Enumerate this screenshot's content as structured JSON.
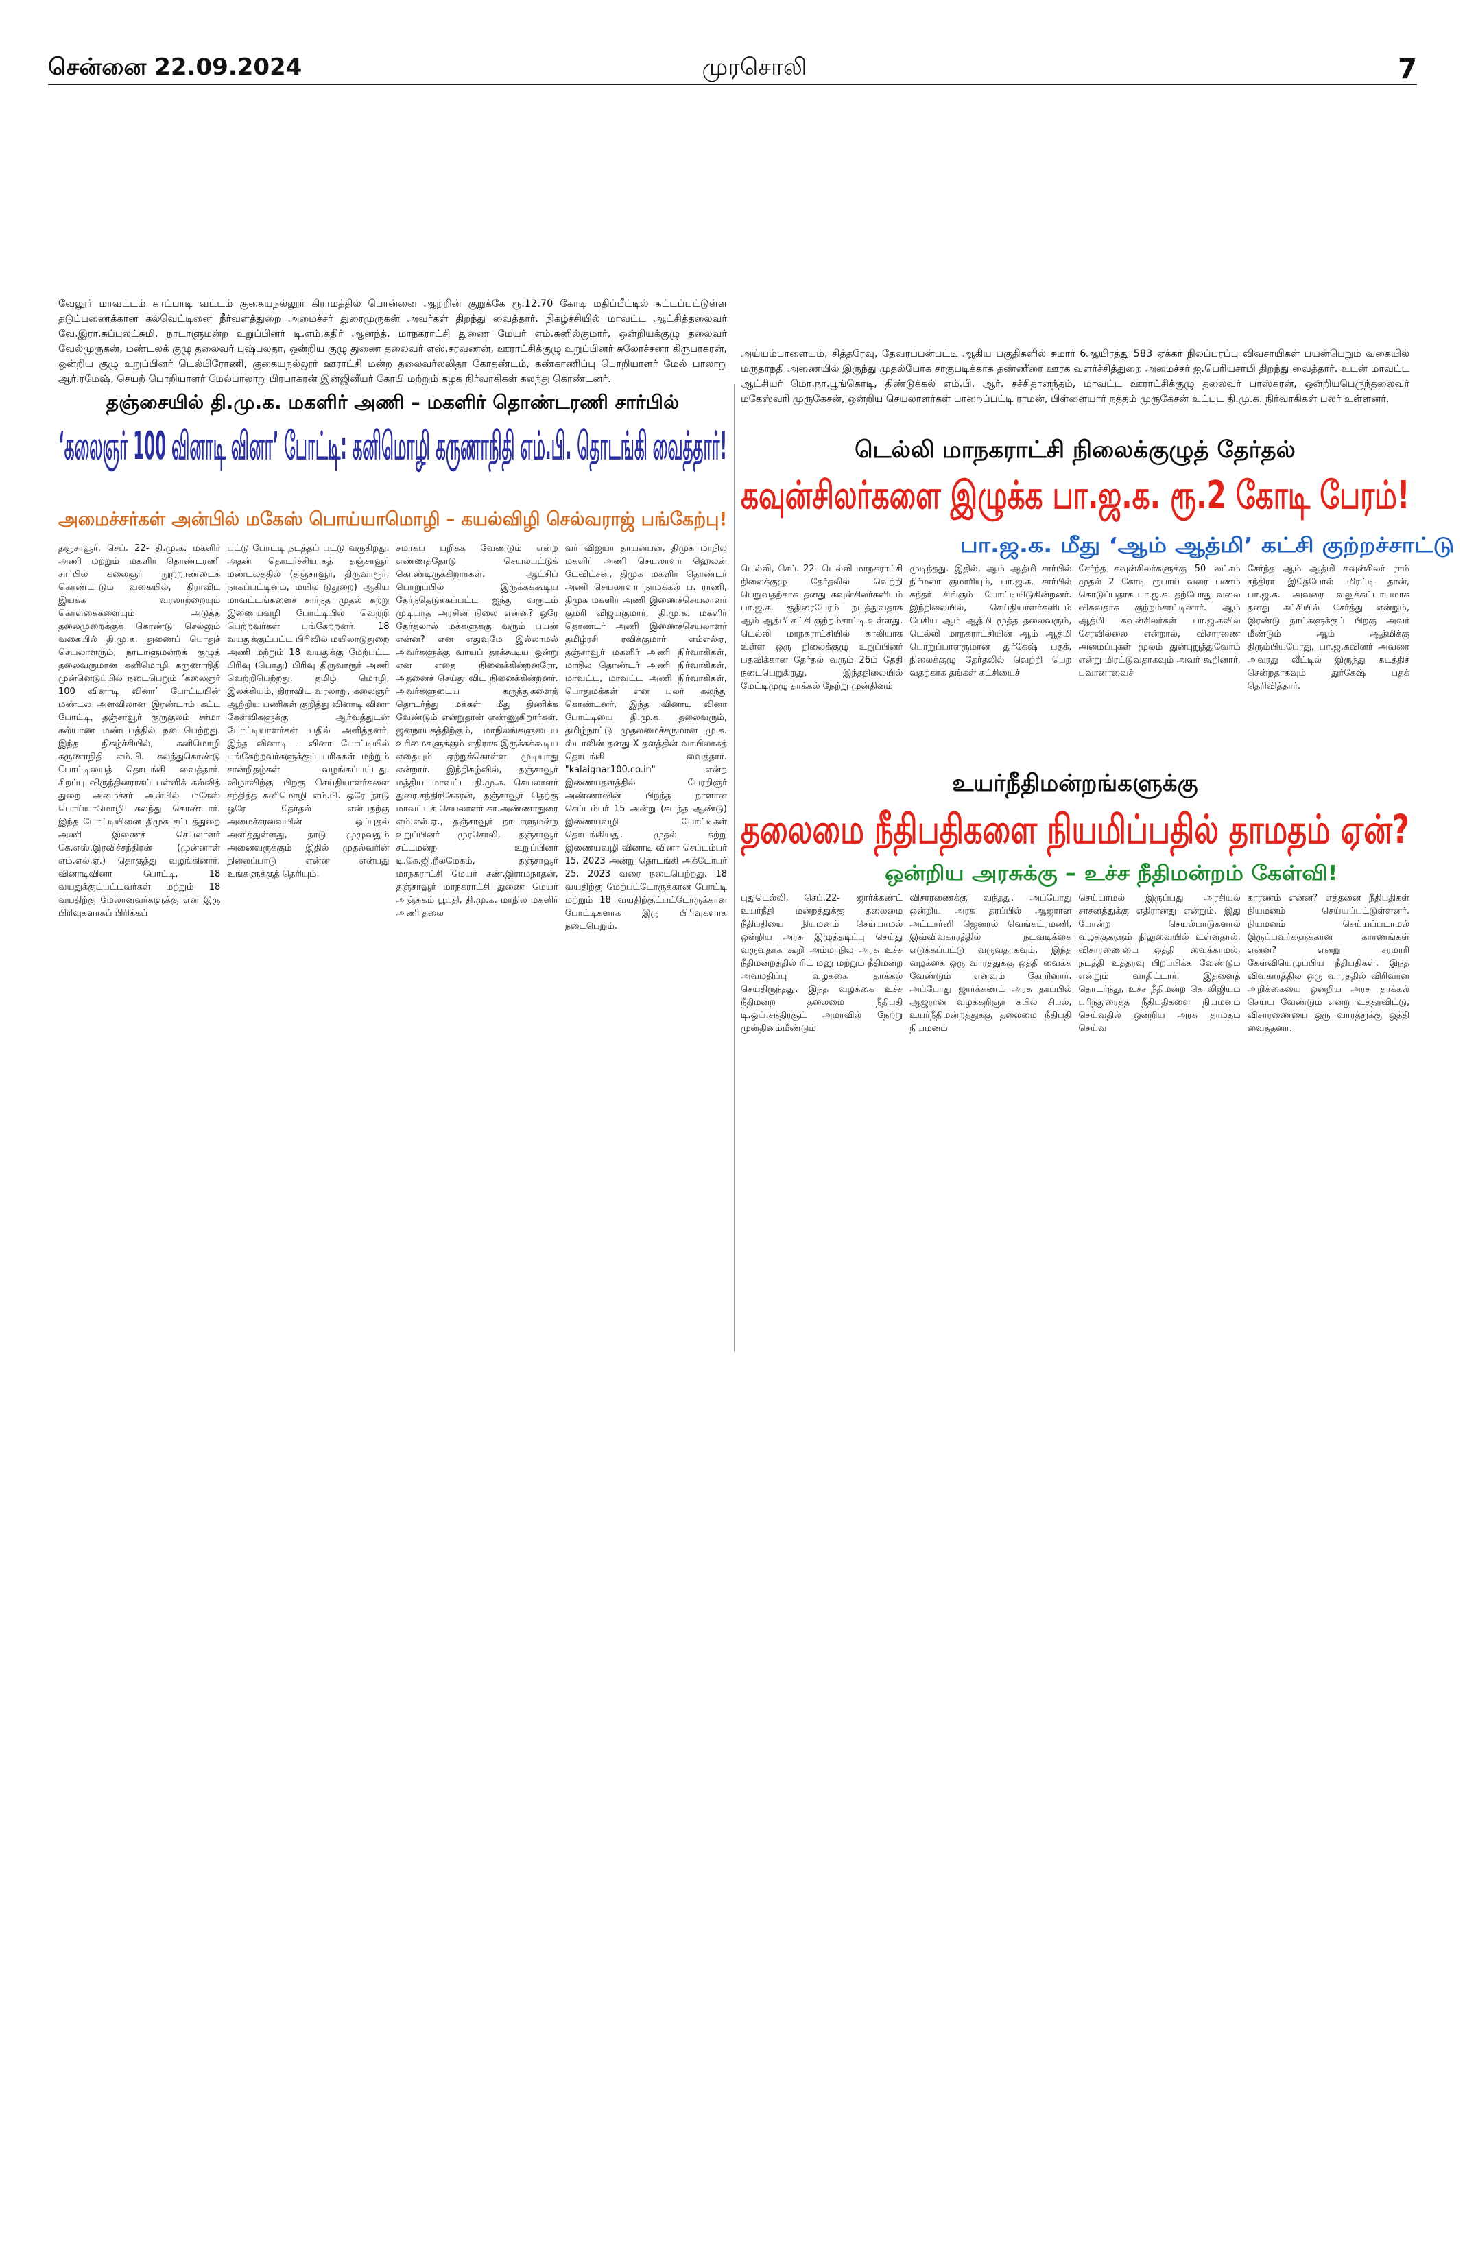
{
  "header": {
    "place_date": "சென்னை 22.09.2024",
    "paper": "முரசொலி",
    "page": "7"
  },
  "photo_captions": [
    "வேலூர் மாவட்டம் காட்பாடி வட்டம் குகையநல்லூர் கிராமத்தில் பொன்னை ஆற்றின் குறுக்கே ரூ.12.70 கோடி மதிப்பீட்டில் கட்டப்பட்டுள்ள தடுப்பணைக்கான கல்வெட்டினை நீர்வளத்துறை அமைச்சர் துரைமுருகன் அவர்கள் திறந்து வைத்தார். நிகழ்ச்சியில் மாவட்ட ஆட்சித்தலைவர் வே.இரா.சுப்புலட்சுமி, நாடாளுமன்ற உறுப்பினர் டி.எம்.கதிர் ஆனந்த், மாநகராட்சி துணை மேயர் எம்.சுனில்குமார், ஒன்றியக்குழு தலைவர் வேல்முருகன், மண்டலக் குழு தலைவர் புஷ்பலதா, ஒன்றிய குழு துணை தலைவர் எஸ்.சரவணன், ஊராட்சிக்குழு உறுப்பினர் சுலோச்சனா கிருபாகரன், ஒன்றிய குழு உறுப்பினர் டெல்பிரோணி, குகையநல்லூர் ஊராட்சி மன்ற தலைவர்லலிதா கோதண்டம், கண்காணிப்பு பொறியாளர் மேல் பாலாறு ஆர்.ரமேஷ், செயற் பொறியாளர் மேல்பாலாறு பிரபாகரன் இன்ஜினீயர் கோபி மற்றும் கழக நிர்வாகிகள் கலந்து கொண்டனர்.",
    "அய்யம்பாளையம், சித்தரேவு, தேவரப்பன்பட்டி ஆகிய பகுதிகளில் சுமார் 6ஆயிரத்து 583 ஏக்கர் நிலப்பரப்பு விவசாயிகள் பயன்பெறும் வகையில் மருதாநதி அணையில் இருந்து முதல்போக சாகுபடிக்காக தண்ணீரை ஊரக வளர்ச்சித்துறை அமைச்சர் ஐ.பெரியசாமி திறந்து வைத்தார். உடன் மாவட்ட ஆட்சியர் மொ.நா.பூங்கொடி, திண்டுக்கல் எம்.பி. ஆர். சச்சிதானந்தம், மாவட்ட ஊராட்சிக்குழு தலைவர் பாஸ்கரன், ஒன்றியபெருந்தலைவர் மகேஸ்வரி முருகேசன், ஒன்றிய செயலாளர்கள் பாறைப்பட்டி ராமன், பிள்ளையார் நத்தம் முருகேசன் உட்பட தி.மு.க. நிர்வாகிகள் பலர் உள்ளனர்."
  ],
  "articles": [
    {
      "kicker": "தஞ்சையில் தி.மு.க. மகளிர் அணி – மகளிர் தொண்டரணி சார்பில்",
      "headline": "‘கலைஞர் 100 வினாடி வினா’ போட்டி: கனிமொழி கருணாநிதி எம்.பி. தொடங்கி வைத்தார்!",
      "subheadline": "அமைச்சர்கள் அன்பில் மகேஸ் பொய்யாமொழி – கயல்விழி செல்வராஜ் பங்கேற்பு!",
      "columns": [
        "தஞ்சாவூர், செப். 22- தி.மு.க. மகளிர் அணி மற்றும் மகளிர் தொண்டரணி சார்பில் கலைஞர் நூற்றாண்டைக் கொண்டாடும் வகையில், திராவிட இயக்க வரலாற்றையும் கொள்கைகளையும் அடுத்த தலைமுறைக்குக் கொண்டு செல்லும் வகையில் தி.மு.க. துணைப் பொதுச் செயலாளரும், நாடாளுமன்றக் குழுத் தலைவருமான கனிமொழி கருணாநிதி முன்னெடுப்பில் நடைபெறும் ‘கலைஞர் 100 வினாடி வினா’ போட்டியின் மண்டல அளவிலான இரண்டாம் கட்ட போட்டி, தஞ்சாவூர் குருகுலம் சர்மா கல்யாண மண்டபத்தில் நடைபெற்றது. இந்த நிகழ்ச்சியில், கனிமொழி கருணாநிதி எம்.பி. கலந்துகொண்டு போட்டியைத் தொடங்கி வைத்தார். சிறப்பு விருந்தினராகப் பள்ளிக் கல்வித் துறை அமைச்சர் அன்பில் மகேஸ் பொய்யாமொழி கலந்து கொண்டார். இந்த போட்டியினை திமுக சட்டத்துறை அணி இணைச் செயலாளர் கே.எஸ்.இரவிச்சந்திரன் (முன்னாள் எம்.எல்.ஏ.) தொகுத்து வழங்கினார். வினாடிவினா போட்டி, 18 வயதுக்குட்பட்டவர்கள் மற்றும் 18 வயதிற்கு மேலானவர்களுக்கு என இரு பிரிவுகளாகப் பிரிக்கப்",
        "பட்டு போட்டி நடத்தப் பட்டு வருகிறது. அதன் தொடர்ச்சியாகத் தஞ்சாவூர் மண்டலத்தில் (தஞ்சாவூர், திருவாரூர், நாகப்பட்டினம், மயிலாடுதுறை) ஆகிய மாவட்டங்களைச் சார்ந்த முதல் சுற்று இணையவழி போட்டியில் வெற்றி பெற்றவர்கள் பங்கேற்றனர். 18 வயதுக்குட்பட்ட பிரிவில் மயிலாடுதுறை அணி மற்றும் 18 வயதுக்கு மேற்பட்ட பிரிவு (பொது) பிரிவு திருவாரூர் அணி வெற்றிபெற்றது. தமிழ் மொழி, இலக்கியம், திராவிட வரலாறு, கலைஞர் ஆற்றிய பணிகள் குறித்து வினாடி வினா கேள்விகளுக்கு ஆர்வத்துடன் போட்டியாளர்கள் பதில் அளித்தனர். இந்த வினாடி - வினா போட்டியில் பங்கேற்றவர்களுக்குப் பரிசுகள் மற்றும் சான்றிதழ்கள் வழங்கப்பட்டது. விழாவிற்கு பிறகு செய்தியாளர்களை சந்தித்த கனிமொழி எம்.பி. ஒரே நாடு ஒரே தேர்தல் என்பதற்கு அமைச்சரவையின் ஒப்புதல் அளித்துள்ளது, நாடு முழுவதும் அனைவருக்கும் இதில் முதல்வரின் நிலைப்பாடு என்ன என்பது உங்களுக்குத் தெரியும்.",
        "சமாகப் பறிக்க வேண்டும் என்ற எண்ணத்தோடு செயல்பட்டுக் கொண்டிருக்கிறார்கள். ஆட்சிப் பொறுப்பில் இருக்கக்கூடிய தேர்ந்தெடுக்கப்பட்ட ஐந்து வருடம் முடியாத அரசின் நிலை என்ன? ஒரே தேர்தலால் மக்களுக்கு வரும் பயன் என்ன? என எதுவுமே இல்லாமல் அவர்களுக்கு வாயப் தரக்கூடிய ஒன்று என எதை நினைக்கின்றனரோ, அதனைச் செய்து விட நினைக்கின்றனர். அவர்களுடைய கருத்துகளைத் தொடர்ந்து மக்கள் மீது திணிக்க வேண்டும் என்றுதான் எண்ணுகிறார்கள். ஜனநாயகத்திற்கும், மாநிலங்களுடைய உரிமைகளுக்கும் எதிராக இருக்கக்கூடிய எதையும் ஏற்றுக்கொள்ள முடியாது என்றார். இந்நிகழ்வில், தஞ்சாவூர் மத்திய மாவட்ட தி.மு.க. செயலாளர் துரை.சந்திரசேகரன், தஞ்சாவூர் தெற்கு மாவட்டச் செயலாளர் கா.அண்ணாதுரை எம்.எல்.ஏ., தஞ்சாவூர் நாடாளுமன்ற உறுப்பினர் முரசொலி, தஞ்சாவூர் சட்டமன்ற உறுப்பினர் டி.கே.ஜி.நீலமேகம், தஞ்சாவூர் மாநகராட்சி மேயர் சண்.இராமநாதன், தஞ்சாவூர் மாநகராட்சி துணை மேயர் அஞ்சுகம் பூபதி, தி.மு.க. மாநில மகளிர் அணி தலை",
        "வர் விஜயா தாயன்பன், திமுக மாநில மகளிர் அணி செயலாளர் ஹெலன் டேவிட்சன், திமுக மகளிர் தொண்டர் அணி செயலாளர் நாமக்கல் ப. ராணி, திமுக மகளிர் அணி இணைச்செயலாளர் குமரி விஜயகுமார், தி.மு.க. மகளிர் தொண்டர் அணி இணைச்செயலாளர் தமிழ்ரசி ரவிக்குமார் எம்எல்ஏ, தஞ்சாவூர் மகளிர் அணி நிர்வாகிகள், மாநில தொண்டர் அணி நிர்வாகிகள், மாவட்ட, மாவட்ட அணி நிர்வாகிகள், பொதுமக்கள் என பலர் கலந்து கொண்டனர். இந்த வினாடி வினா போட்டியை தி.மு.க. தலைவரும், தமிழ்நாட்டு முதலமைச்சருமான மு.க. ஸ்டாலின் தனது X தளத்தின் வாயிலாகத் தொடங்கி வைத்தார். \"kalaignar100.co.in\" என்ற இணையதளத்தில் பேரறிஞர் அண்ணாவின் பிறந்த நாளான செப்டம்பர் 15 அன்று (கடந்த ஆண்டு) இணையவழி போட்டிகள் தொடங்கியது. முதல் சுற்று இணையவழி வினாடி வினா செப்டம்பர் 15, 2023 அன்று தொடங்கி அக்டோபர் 25, 2023 வரை நடைபெற்றது. 18 வயதிற்கு மேற்பட்டோருக்கான போட்டி மற்றும் 18 வயதிற்குட்பட்டோருக்கான போட்டிகளாக இரு பிரிவுகளாக நடைபெறும்."
      ]
    },
    {
      "kicker": "டெல்லி மாநகராட்சி நிலைக்குழுத் தேர்தல்",
      "headline": "கவுன்சிலர்களை இழுக்க பா.ஜ.க. ரூ.2 கோடி பேரம்!",
      "subheadline": "பா.ஜ.க. மீது ‘ஆம் ஆத்மி’ கட்சி குற்றச்சாட்டு",
      "columns": [
        "டெல்லி, செப். 22- டெல்லி மாநகராட்சி நிலைக்குழு தேர்தலில் வெற்றி பெறுவதற்காக தனது கவுன்சிலர்களிடம் பா.ஜ.க. குதிரைபேரம் நடத்துவதாக ஆம் ஆத்மி கட்சி குற்றம்சாட்டி உள்ளது. டெல்லி மாநகராட்சியில் காலியாக உள்ள ஒரு நிலைக்குழு உறுப்பினர் பதவிக்கான தேர்தல் வரும் 26ம் தேதி நடைபெறுகிறது. இந்தநிலையில் மேட்டிமுழு தாக்கல் நேற்று முன்தினம்",
        "முடிந்தது. இதில், ஆம் ஆத்மி சார்பில் நிர்மலா குமாரியும், பா.ஜ.க. சார்பில் சுந்தர் சிங்கும் போட்டியிடுகின்றனர். இந்நிலையில், செய்தியாளர்களிடம் பேசிய ஆம் ஆத்மி மூத்த தலைவரும், டெல்லி மாநகராட்சியின் ஆம் ஆத்மி பொறுப்பாளருமான துர்கேஷ் பதக், நிலைக்குழு தேர்தலில் வெற்றி பெற வதற்காக தங்கள் கட்சியைச்",
        "சேர்ந்த கவுன்சிலர்களுக்கு 50 லட்சம் முதல் 2 கோடி ரூபாய் வரை பணம் கொடுப்பதாக பா.ஜ.க. தற்போது வலை விசுவதாக குற்றம்சாட்டினார். ஆம் ஆத்மி கவுன்சிலர்கள் பா.ஜ.கவில் சேரவில்லை என்றால், விசாரணை அமைப்புகள் மூலம் துன்புறுத்துவோம் என்று மிரட்டுவதாகவும் அவர் கூறினார். பவானாவைச்",
        "சேர்ந்த ஆம் ஆத்மி கவுன்சிலர் ராம் சந்திரா இதேபோல் மிரட்டி தான், பா.ஜ.க. அவரை வலுக்கட்டாயமாக தனது கட்சியில் சேர்த்து என்றும், இரண்டு நாட்களுக்குப் பிறகு அவர் மீண்டும் ஆம் ஆத்மிக்கு திரும்பியபோது, பா.ஜ.கவினர் அவரை அவரது வீட்டில் இருந்து கடத்திச் சென்றதாகவும் துர்கேஷ் பதக் தெரிவித்தார்."
      ]
    },
    {
      "kicker": "உயர்நீதிமன்றங்களுக்கு",
      "headline": "தலைமை நீதிபதிகளை நியமிப்பதில் தாமதம் ஏன்?",
      "subheadline": "ஒன்றிய அரசுக்கு – உச்ச நீதிமன்றம் கேள்வி!",
      "columns": [
        "புதுடெல்லி, செப்.22- ஜார்க்கண்ட் உயர்நீதி மன்றத்துக்கு தலைமை நீதிபதியை நியமனம் செய்யாமல் ஒன்றிய அரசு இழுத்தடிப்பு செய்து வருவதாக கூறி அம்மாநில அரசு உச்ச நீதிமன்றத்தில் ரிட் மனு மற்றும் நீதிமன்ற அவமதிப்பு வழக்கை தாக்கல் செய்திருந்தது. இந்த வழக்கை உச்ச நீதிமன்ற தலைமை நீதிபதி டி.ஒய்.சந்திரசூட் அமர்வில் நேற்று முன்தினம்மீண்டும்",
        "விசாரணைக்கு வந்தது. அப்போது ஒன்றிய அரசு தரப்பில் ஆஜரான அட்டார்னி ஜெனரல் வெங்கட்ரமணி, இவ்விவகாரத்தில் நடவடிக்கை எடுக்கப்பட்டு வருவதாகவும், இந்த வழக்கை ஒரு வாரத்துக்கு ஒத்தி வைக்க வேண்டும் எனவும் கோரினார். அப்போது ஜார்க்கண்ட் அரசு தரப்பில் ஆஜரான வழக்கறிஞர் கபில் சிபல், உயர்நீதிமன்றத்துக்கு தலைமை நீதிபதி நியமனம்",
        "செய்யாமல் இருப்பது அரசியல் சாசனத்துக்கு எதிரானது என்றும், இது போன்ற செயல்பாடுகளால் வழக்குகளும் நிலுவையில் உள்ளதால், விசாரணையை ஒத்தி வைக்காமல், நடத்தி உத்தரவு பிறப்பிக்க வேண்டும் என்றும் வாதிட்டார். இதனைத் தொடர்ந்து, உச்ச நீதிமன்ற கொலிஜியம் பரிந்துரைத்த நீதிபதிகளை நியமனம் செய்வதில் ஒன்றிய அரசு தாமதம் செய்வ",
        "காரணம் என்ன? எத்தனை நீதிபதிகள் நியமனம் செய்யப்பட்டுள்ளனர். நியமனம் செய்யப்படாமல் இருப்பவர்களுக்கான காரணங்கள் என்ன? என்று சரமாரி கேள்வியெழுப்பிய நீதிபதிகள், இந்த விவகாரத்தில் ஒரு வாரத்தில் விரிவான அறிக்கையை ஒன்றிய அரசு தாக்கல் செய்ய வேண்டும் என்று உத்தரவிட்டு, விசாரணையை ஒரு வாரத்துக்கு ஒத்தி வைத்தனர்."
      ]
    }
  ]
}
